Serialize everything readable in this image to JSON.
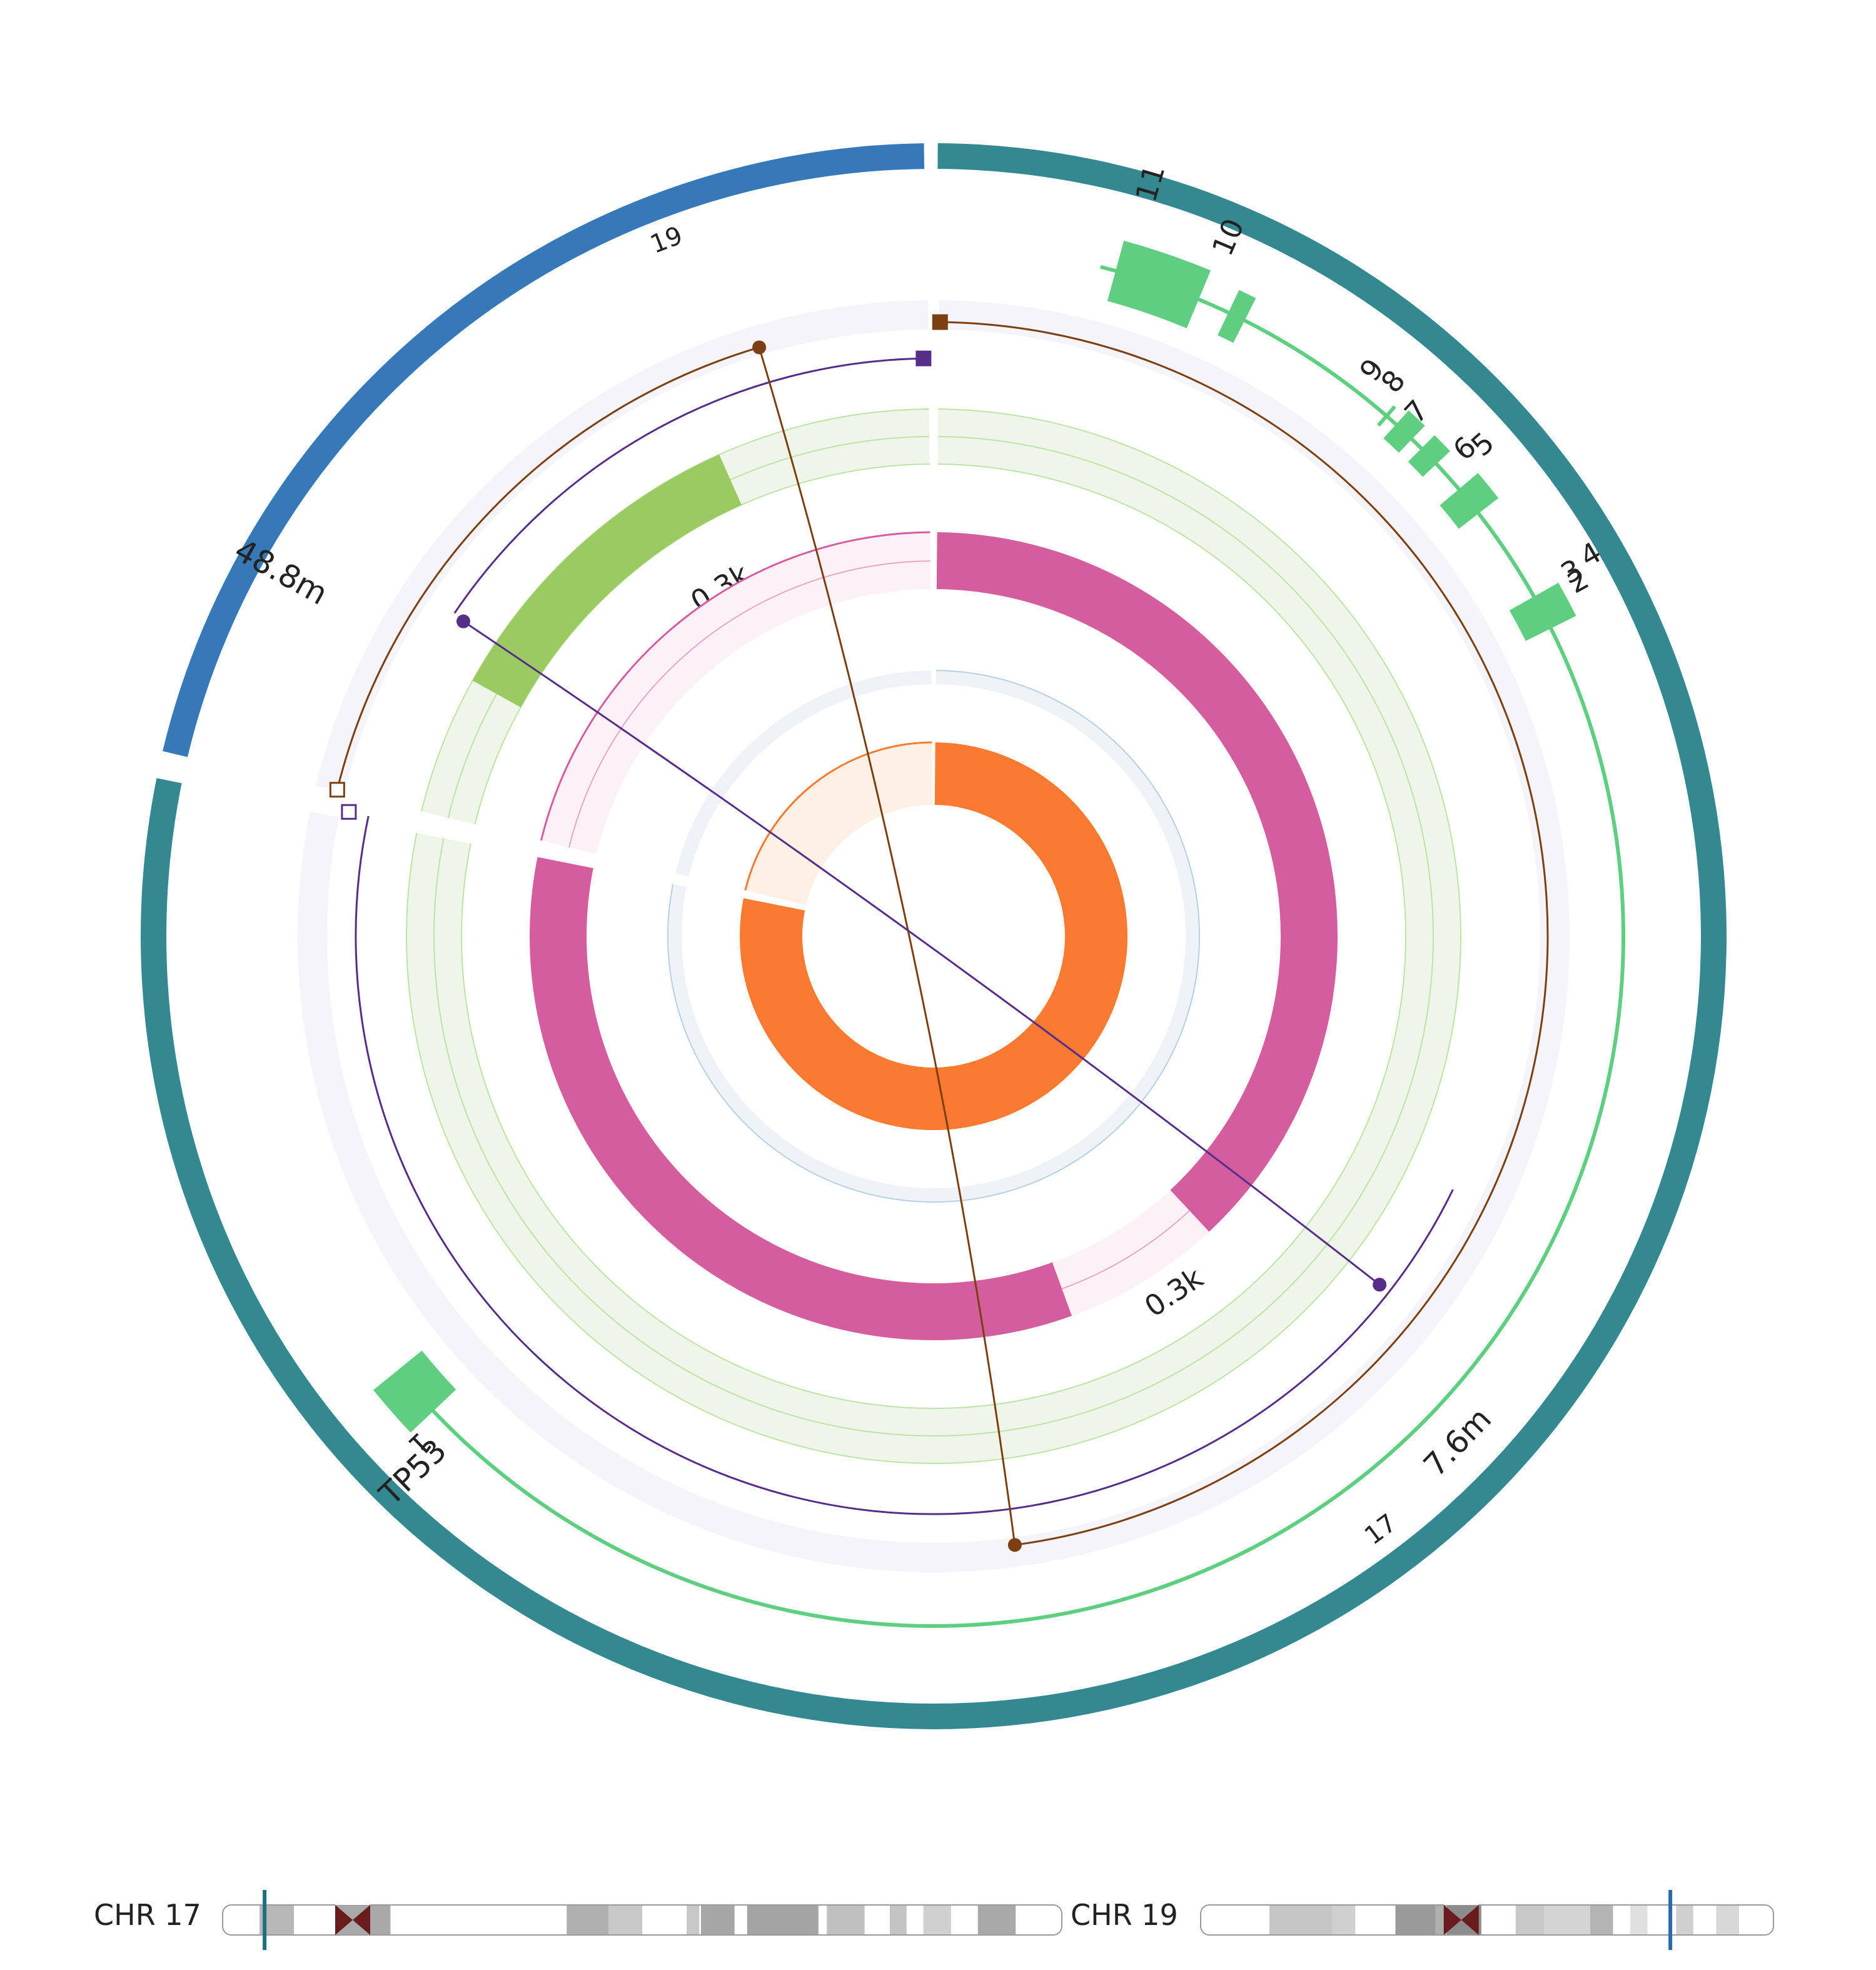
{
  "chromosomes": {
    "first": {
      "label": "17",
      "color": "#34888f"
    },
    "second": {
      "label": "19",
      "color": "#3779b8"
    }
  },
  "position_labels": {
    "chr17": "7.6m",
    "chr19": "48.8m"
  },
  "gene": {
    "name": "TP53",
    "color": "#5fce80",
    "exon_labels": [
      "1",
      "2",
      "3",
      "4",
      "5",
      "6",
      "7",
      "8",
      "9",
      "10",
      "11"
    ]
  },
  "tracks": {
    "link_track_color": "#f4f4f9",
    "green_track": {
      "label": "0.3k",
      "color": "#9bca62",
      "background": "#eff6e9"
    },
    "pink_track": {
      "label": "0.3k",
      "color": "#d45e9d",
      "background": "#fcf1f7"
    },
    "blue_track": {
      "background": "#eff3f8",
      "color": "#b8d0e2"
    },
    "orange_track": {
      "color": "#f97a30",
      "background": "#fdf1e6"
    }
  },
  "links": [
    {
      "color": "#7b3f12"
    },
    {
      "color": "#542e89"
    }
  ],
  "ideograms": [
    {
      "label": "CHR 17",
      "marker_color": "#1f6e82"
    },
    {
      "label": "CHR 19",
      "marker_color": "#2f6aa8"
    }
  ],
  "centromere_color": "#6a1b1b"
}
